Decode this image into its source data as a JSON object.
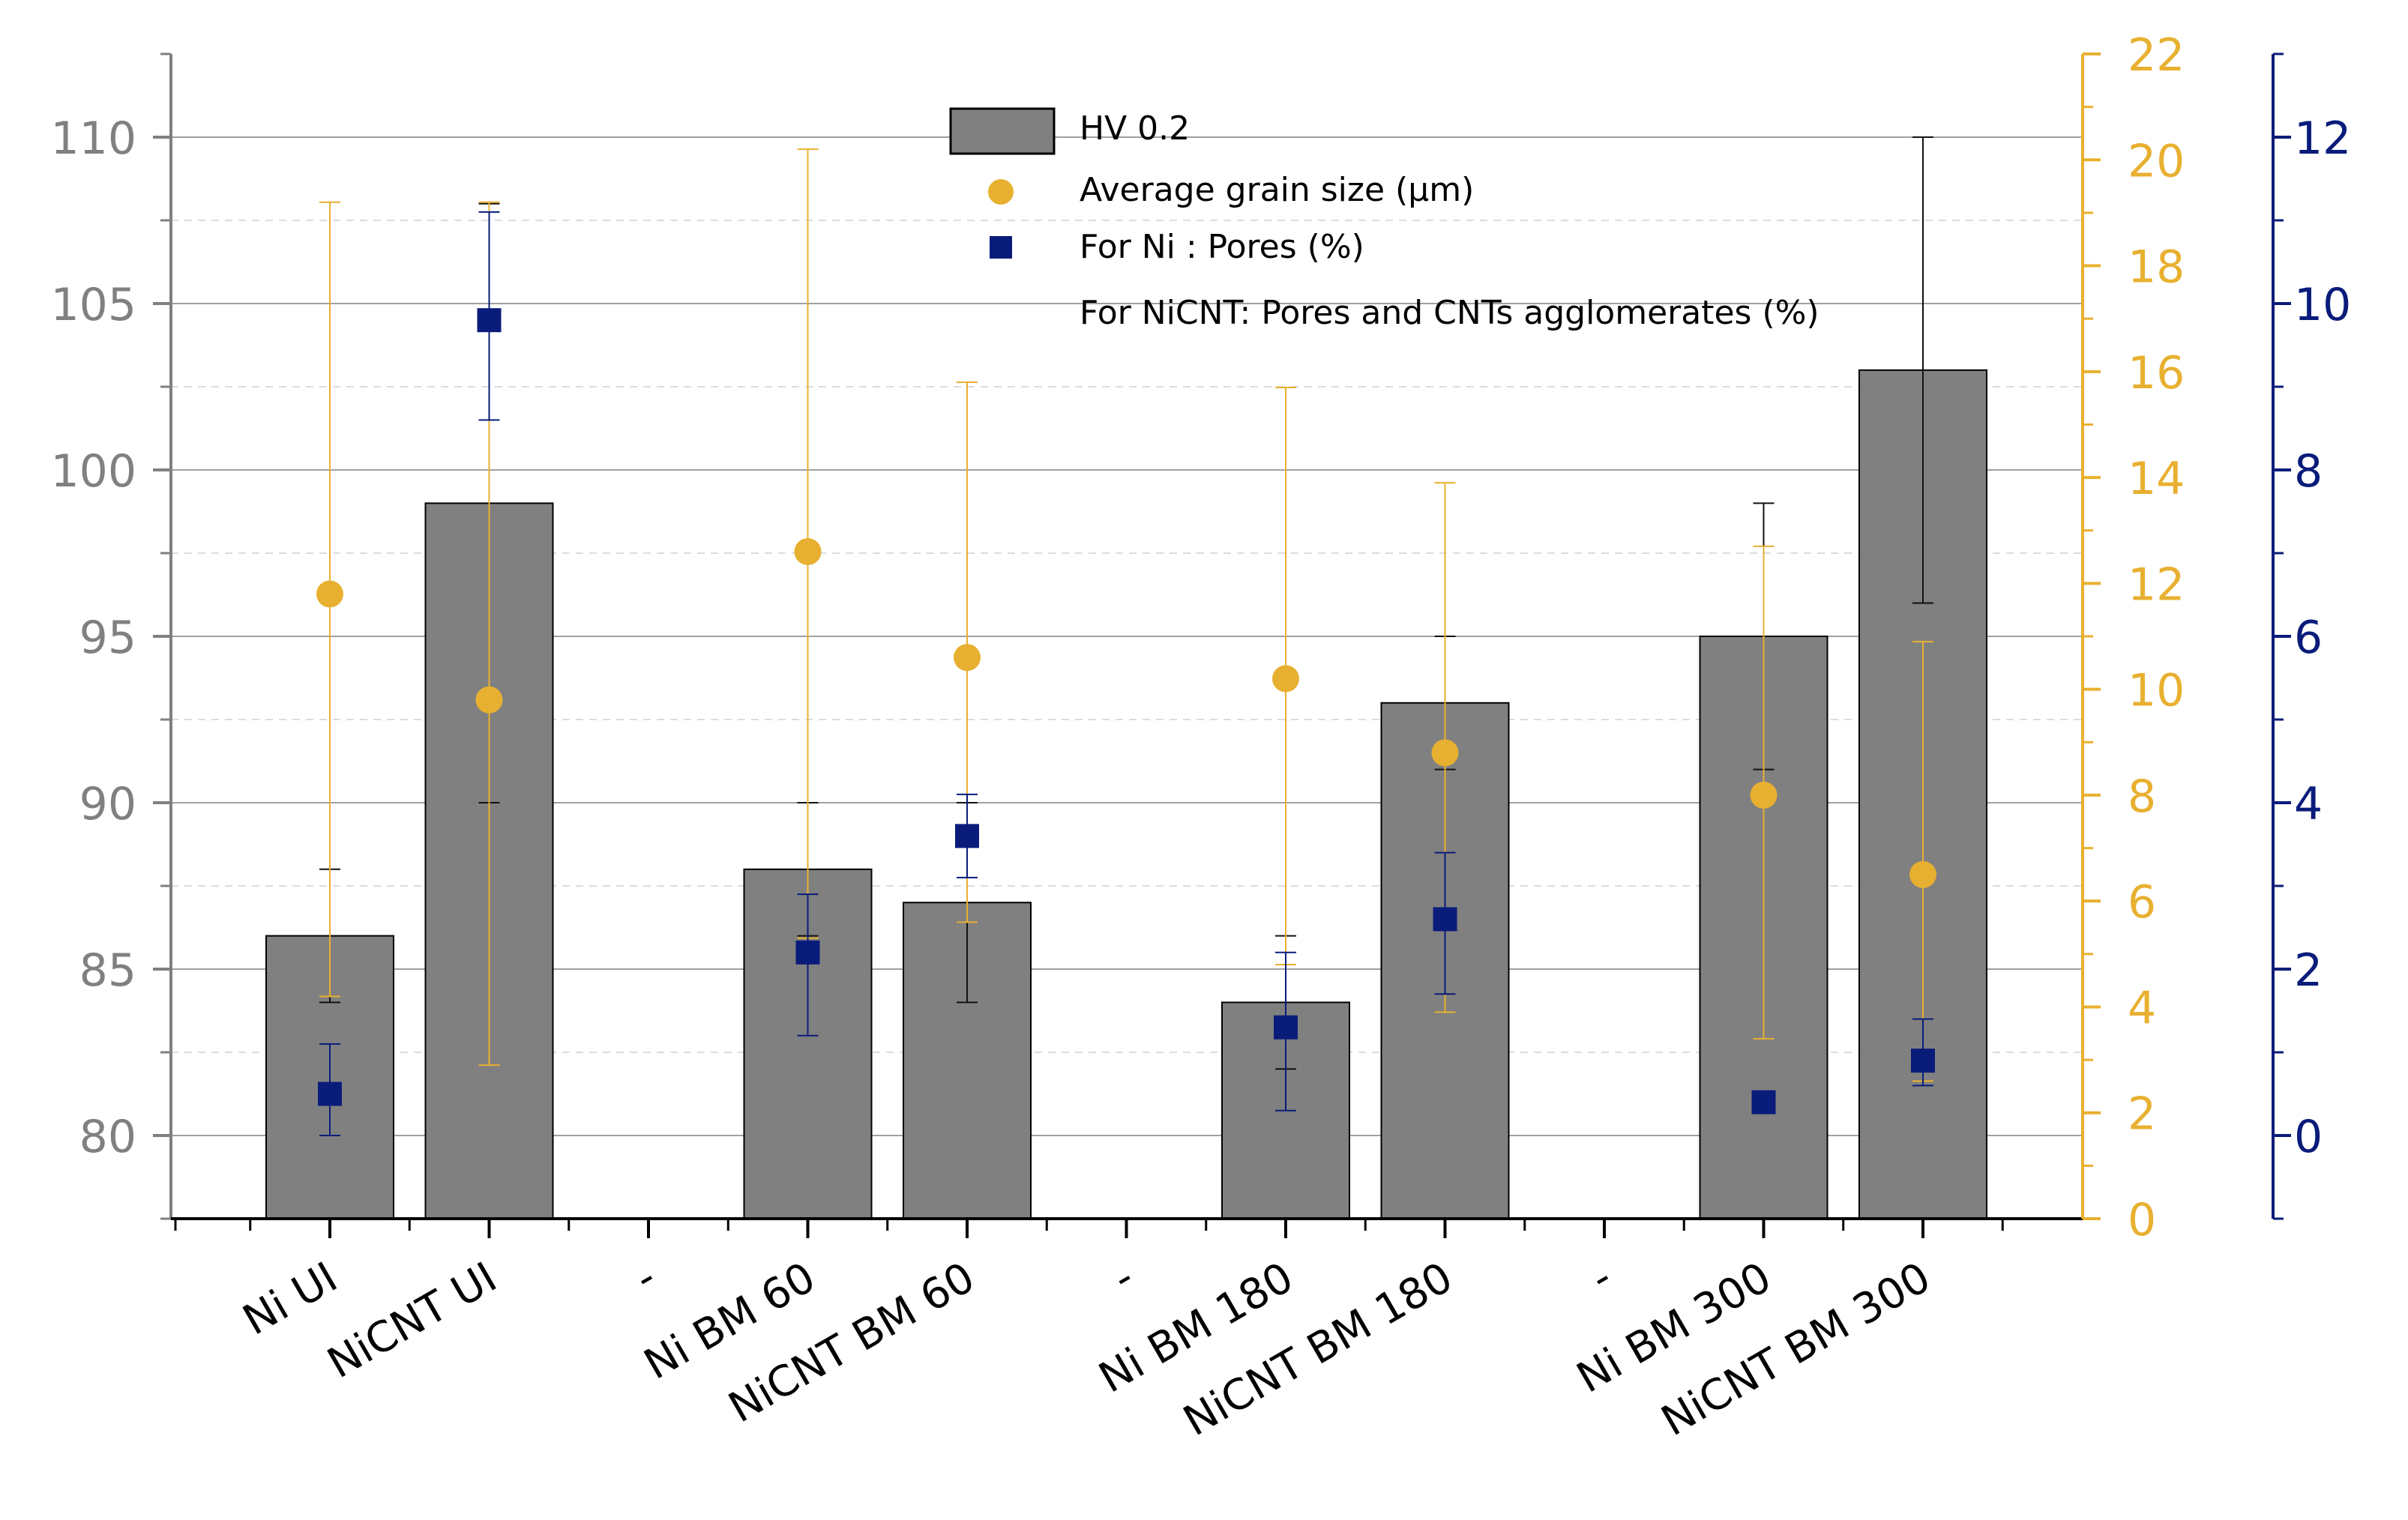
{
  "chart_data": {
    "type": "bar",
    "categories": [
      "Ni UI",
      "NiCNT UI",
      "-",
      "Ni BM 60",
      "NiCNT BM 60",
      "-",
      "Ni BM 180",
      "NiCNT BM 180",
      "-",
      "Ni BM 300",
      "NiCNT BM 300"
    ],
    "axes": {
      "left": {
        "ylim": [
          77.5,
          112.5
        ],
        "ticks": [
          "80",
          "85",
          "90",
          "95",
          "100",
          "105",
          "110"
        ],
        "color": "#808080"
      },
      "right1": {
        "ylim": [
          0,
          22
        ],
        "ticks": [
          "0",
          "2",
          "4",
          "6",
          "8",
          "10",
          "12",
          "14",
          "16",
          "18",
          "20",
          "22"
        ],
        "color": "#E8B030"
      },
      "right2": {
        "ylim": [
          -1,
          13
        ],
        "ticks": [
          "0",
          "2",
          "4",
          "6",
          "8",
          "10",
          "12"
        ],
        "color": "#0A1C7A"
      }
    },
    "grid": true,
    "legend_position": "top-center",
    "legend": [
      "HV 0.2",
      "Average grain size (µm)",
      "For Ni : Pores (%)",
      "For NiCNT: Pores and CNTs agglomerates (%)"
    ],
    "series": [
      {
        "name": "HV 0.2",
        "kind": "bar",
        "axis": "left",
        "color": "#808080",
        "points": [
          {
            "cat": 0,
            "v": 86,
            "lo": 84,
            "hi": 88
          },
          {
            "cat": 1,
            "v": 99,
            "lo": 90,
            "hi": 108
          },
          {
            "cat": 3,
            "v": 88,
            "lo": 86,
            "hi": 90
          },
          {
            "cat": 4,
            "v": 87,
            "lo": 84,
            "hi": 90
          },
          {
            "cat": 6,
            "v": 84,
            "lo": 82,
            "hi": 86
          },
          {
            "cat": 7,
            "v": 93,
            "lo": 91,
            "hi": 95
          },
          {
            "cat": 9,
            "v": 95,
            "lo": 91,
            "hi": 99
          },
          {
            "cat": 10,
            "v": 103,
            "lo": 96,
            "hi": 110
          }
        ]
      },
      {
        "name": "Average grain size (µm)",
        "kind": "marker",
        "shape": "circle",
        "axis": "right1",
        "color": "#E8B030",
        "points": [
          {
            "cat": 0,
            "v": 11.8,
            "lo": 4.2,
            "hi": 19.2
          },
          {
            "cat": 1,
            "v": 9.8,
            "lo": 2.9,
            "hi": 19.2
          },
          {
            "cat": 3,
            "v": 12.6,
            "lo": 5.3,
            "hi": 20.2
          },
          {
            "cat": 4,
            "v": 10.6,
            "lo": 5.6,
            "hi": 15.8
          },
          {
            "cat": 6,
            "v": 10.2,
            "lo": 4.8,
            "hi": 15.7
          },
          {
            "cat": 7,
            "v": 8.8,
            "lo": 3.9,
            "hi": 13.9
          },
          {
            "cat": 9,
            "v": 8.0,
            "lo": 3.4,
            "hi": 12.7
          },
          {
            "cat": 10,
            "v": 6.5,
            "lo": 2.6,
            "hi": 10.9
          }
        ]
      },
      {
        "name": "For Ni : Pores (%)",
        "kind": "marker",
        "shape": "square",
        "axis": "right2",
        "color": "#0A1C7A",
        "points": [
          {
            "cat": 0,
            "v": 0.5,
            "lo": 0.0,
            "hi": 1.1
          },
          {
            "cat": 1,
            "v": 9.8,
            "lo": 8.6,
            "hi": 11.1
          },
          {
            "cat": 3,
            "v": 2.2,
            "lo": 1.2,
            "hi": 2.9
          },
          {
            "cat": 4,
            "v": 3.6,
            "lo": 3.1,
            "hi": 4.1
          },
          {
            "cat": 6,
            "v": 1.3,
            "lo": 0.3,
            "hi": 2.2
          },
          {
            "cat": 7,
            "v": 2.6,
            "lo": 1.7,
            "hi": 3.4
          },
          {
            "cat": 9,
            "v": 0.4,
            "lo": 0.4,
            "hi": 0.4
          },
          {
            "cat": 10,
            "v": 0.9,
            "lo": 0.6,
            "hi": 1.4
          }
        ]
      }
    ]
  }
}
